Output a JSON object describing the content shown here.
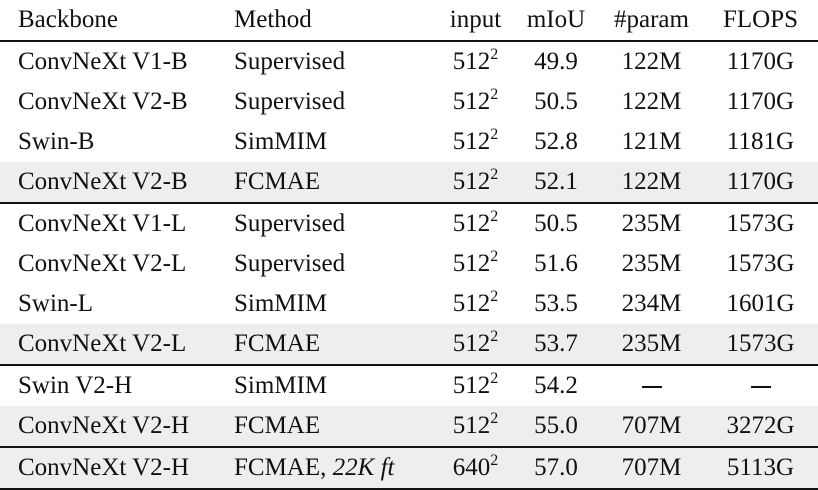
{
  "table": {
    "headers": {
      "backbone": "Backbone",
      "method": "Method",
      "input": "input",
      "miou": "mIoU",
      "param": "#param",
      "flops": "FLOPS"
    },
    "groups": [
      [
        {
          "backbone": "ConvNeXt V1-B",
          "method": "Supervised",
          "method_suffix": "",
          "input_base": "512",
          "input_exp": "2",
          "miou": "49.9",
          "miou_bold": false,
          "param": "122M",
          "flops": "1170G",
          "shaded": false
        },
        {
          "backbone": "ConvNeXt V2-B",
          "method": "Supervised",
          "method_suffix": "",
          "input_base": "512",
          "input_exp": "2",
          "miou": "50.5",
          "miou_bold": false,
          "param": "122M",
          "flops": "1170G",
          "shaded": false
        },
        {
          "backbone": "Swin-B",
          "method": "SimMIM",
          "method_suffix": "",
          "input_base": "512",
          "input_exp": "2",
          "miou": "52.8",
          "miou_bold": true,
          "param": "121M",
          "flops": "1181G",
          "shaded": false
        },
        {
          "backbone": "ConvNeXt V2-B",
          "method": "FCMAE",
          "method_suffix": "",
          "input_base": "512",
          "input_exp": "2",
          "miou": "52.1",
          "miou_bold": false,
          "param": "122M",
          "flops": "1170G",
          "shaded": true
        }
      ],
      [
        {
          "backbone": "ConvNeXt V1-L",
          "method": "Supervised",
          "method_suffix": "",
          "input_base": "512",
          "input_exp": "2",
          "miou": "50.5",
          "miou_bold": false,
          "param": "235M",
          "flops": "1573G",
          "shaded": false
        },
        {
          "backbone": "ConvNeXt V2-L",
          "method": "Supervised",
          "method_suffix": "",
          "input_base": "512",
          "input_exp": "2",
          "miou": "51.6",
          "miou_bold": false,
          "param": "235M",
          "flops": "1573G",
          "shaded": false
        },
        {
          "backbone": "Swin-L",
          "method": "SimMIM",
          "method_suffix": "",
          "input_base": "512",
          "input_exp": "2",
          "miou": "53.5",
          "miou_bold": false,
          "param": "234M",
          "flops": "1601G",
          "shaded": false
        },
        {
          "backbone": "ConvNeXt V2-L",
          "method": "FCMAE",
          "method_suffix": "",
          "input_base": "512",
          "input_exp": "2",
          "miou": "53.7",
          "miou_bold": true,
          "param": "235M",
          "flops": "1573G",
          "shaded": true
        }
      ],
      [
        {
          "backbone": "Swin V2-H",
          "method": "SimMIM",
          "method_suffix": "",
          "input_base": "512",
          "input_exp": "2",
          "miou": "54.2",
          "miou_bold": false,
          "param": "",
          "flops": "",
          "shaded": false
        },
        {
          "backbone": "ConvNeXt V2-H",
          "method": "FCMAE",
          "method_suffix": "",
          "input_base": "512",
          "input_exp": "2",
          "miou": "55.0",
          "miou_bold": true,
          "param": "707M",
          "flops": "3272G",
          "shaded": true
        }
      ],
      [
        {
          "backbone": "ConvNeXt V2-H",
          "method": "FCMAE, ",
          "method_suffix": "22K ft",
          "input_base": "640",
          "input_exp": "2",
          "miou": "57.0",
          "miou_bold": true,
          "param": "707M",
          "flops": "5113G",
          "shaded": true
        }
      ]
    ]
  }
}
